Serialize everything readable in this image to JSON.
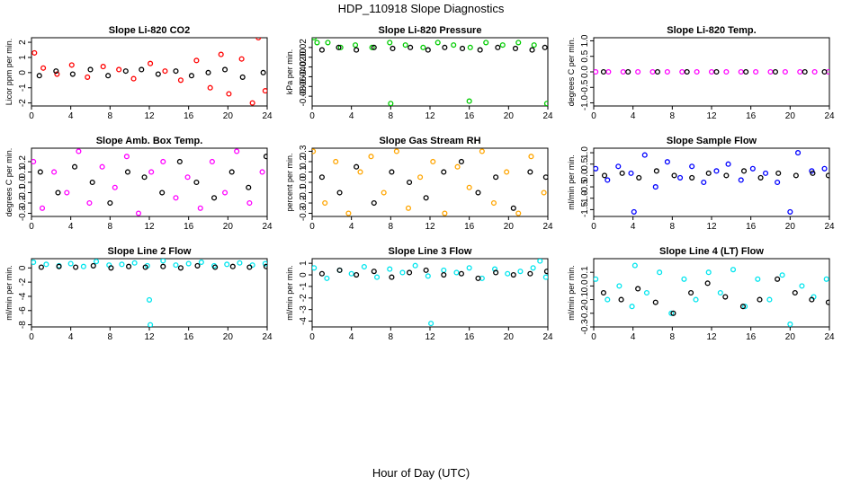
{
  "title": "HDP_110918  Slope Diagnostics",
  "xlabel": "Hour of Day (UTC)",
  "colors": {
    "axis": "#000000",
    "bg": "#ffffff",
    "accent_points": "#000000"
  },
  "chart_data": [
    {
      "type": "scatter",
      "title": "Slope Li-820 CO2",
      "ylabel": "Licor ppm per min.",
      "color": "#ff0000",
      "xlim": [
        0,
        24
      ],
      "ylim": [
        -2.2,
        2.3
      ],
      "xticks": [
        0,
        4,
        8,
        12,
        16,
        20,
        24
      ],
      "xtick_labels": [
        "0",
        "4",
        "8",
        "12",
        "16",
        "20",
        "24"
      ],
      "yticks": [
        -2,
        -1,
        0,
        1,
        2
      ],
      "ytick_labels": [
        "-2",
        "-1",
        "0",
        "1",
        "2"
      ],
      "series": [
        {
          "name": "main",
          "color": "#ff0000",
          "x": [
            0.3,
            1.2,
            2.6,
            4.1,
            5.7,
            7.3,
            8.9,
            10.4,
            12.1,
            13.6,
            15.2,
            16.8,
            18.2,
            19.3,
            20.1,
            21.4,
            22.5,
            23.1,
            23.8
          ],
          "y": [
            1.3,
            0.3,
            -0.1,
            0.5,
            -0.3,
            0.4,
            0.2,
            -0.4,
            0.6,
            0.1,
            -0.5,
            0.8,
            -1.0,
            1.2,
            -1.4,
            0.9,
            -2.0,
            2.3,
            -1.2
          ]
        },
        {
          "name": "secondary",
          "color": "#000000",
          "x": [
            0.8,
            2.5,
            4.2,
            6.0,
            7.8,
            9.6,
            11.2,
            12.9,
            14.7,
            16.3,
            18.0,
            19.7,
            21.5,
            23.6
          ],
          "y": [
            -0.2,
            0.1,
            -0.1,
            0.2,
            -0.2,
            0.1,
            0.2,
            -0.1,
            0.1,
            -0.2,
            0.0,
            0.2,
            -0.3,
            0.0
          ]
        }
      ]
    },
    {
      "type": "scatter",
      "title": "Slope Li-820 Pressure",
      "ylabel": "kPa per min.",
      "color": "#00cc00",
      "xlim": [
        0,
        24
      ],
      "ylim": [
        -0.1,
        0.04
      ],
      "xticks": [
        0,
        4,
        8,
        12,
        16,
        20,
        24
      ],
      "xtick_labels": [
        "0",
        "4",
        "8",
        "12",
        "16",
        "20",
        "24"
      ],
      "yticks": [
        -0.08,
        -0.06,
        -0.04,
        -0.02,
        0.0,
        0.02
      ],
      "ytick_labels": [
        "-0.08",
        "-0.06",
        "-0.04",
        "-0.02",
        "0.00",
        "0.02"
      ],
      "series": [
        {
          "name": "main",
          "color": "#00cc00",
          "x": [
            0.2,
            0.5,
            1.6,
            2.9,
            4.4,
            6.1,
            7.9,
            8.0,
            9.5,
            11.3,
            12.8,
            14.4,
            16.0,
            16.1,
            17.7,
            19.4,
            21.0,
            22.6,
            23.9
          ],
          "y": [
            0.04,
            0.03,
            0.03,
            0.02,
            0.025,
            0.02,
            0.03,
            -0.095,
            0.025,
            0.02,
            0.03,
            0.025,
            -0.09,
            0.02,
            0.03,
            0.025,
            0.03,
            0.025,
            -0.095
          ]
        },
        {
          "name": "secondary",
          "color": "#000000",
          "x": [
            1.0,
            2.7,
            4.5,
            6.3,
            8.2,
            10.0,
            11.8,
            13.5,
            15.3,
            17.1,
            18.9,
            20.7,
            22.4,
            23.7
          ],
          "y": [
            0.015,
            0.02,
            0.015,
            0.02,
            0.018,
            0.02,
            0.015,
            0.02,
            0.018,
            0.015,
            0.02,
            0.018,
            0.015,
            0.02
          ]
        }
      ]
    },
    {
      "type": "scatter",
      "title": "Slope Li-820 Temp.",
      "ylabel": "degrees C per min.",
      "color": "#ff00ff",
      "xlim": [
        0,
        24
      ],
      "ylim": [
        -1.1,
        1.1
      ],
      "xticks": [
        0,
        4,
        8,
        12,
        16,
        20,
        24
      ],
      "xtick_labels": [
        "0",
        "4",
        "8",
        "12",
        "16",
        "20",
        "24"
      ],
      "yticks": [
        -1.0,
        -0.5,
        0.0,
        0.5,
        1.0
      ],
      "ytick_labels": [
        "-1.0",
        "-0.5",
        "0.0",
        "0.5",
        "1.0"
      ],
      "series": [
        {
          "name": "main",
          "color": "#ff00ff",
          "x": [
            0.2,
            1.5,
            3.0,
            4.5,
            6.0,
            7.5,
            9.0,
            10.5,
            12.0,
            13.5,
            15.0,
            16.5,
            18.0,
            19.5,
            21.0,
            22.5,
            23.9
          ],
          "y": [
            0,
            0,
            0,
            0,
            0,
            0,
            0,
            0,
            0,
            0,
            0,
            0,
            0,
            0,
            0,
            0,
            0
          ]
        },
        {
          "name": "secondary",
          "color": "#000000",
          "x": [
            1.0,
            3.5,
            6.5,
            9.5,
            12.5,
            15.5,
            18.5,
            21.5,
            23.5
          ],
          "y": [
            0,
            0,
            0,
            0,
            0,
            0,
            0,
            0,
            0
          ]
        }
      ]
    },
    {
      "type": "scatter",
      "title": "Slope Amb. Box Temp.",
      "ylabel": "degrees C per min.",
      "color": "#ff00ff",
      "xlim": [
        0,
        24
      ],
      "ylim": [
        -0.33,
        0.33
      ],
      "xticks": [
        0,
        4,
        8,
        12,
        16,
        20,
        24
      ],
      "xtick_labels": [
        "0",
        "4",
        "8",
        "12",
        "16",
        "20",
        "24"
      ],
      "yticks": [
        -0.3,
        -0.2,
        -0.1,
        0.0,
        0.1,
        0.2
      ],
      "ytick_labels": [
        "-0.3",
        "-0.2",
        "-0.1",
        "0.0",
        "0.1",
        "0.2"
      ],
      "series": [
        {
          "name": "main",
          "color": "#ff00ff",
          "x": [
            0.2,
            1.1,
            2.3,
            3.6,
            4.8,
            5.9,
            7.2,
            8.5,
            9.7,
            10.9,
            12.2,
            13.4,
            14.7,
            15.9,
            17.2,
            18.4,
            19.7,
            20.9,
            22.2,
            23.5
          ],
          "y": [
            0.2,
            -0.25,
            0.1,
            -0.1,
            0.3,
            -0.2,
            0.15,
            -0.05,
            0.25,
            -0.3,
            0.1,
            0.2,
            -0.15,
            0.05,
            -0.25,
            0.2,
            -0.1,
            0.3,
            -0.2,
            0.1
          ]
        },
        {
          "name": "secondary",
          "color": "#000000",
          "x": [
            0.9,
            2.7,
            4.4,
            6.2,
            8.0,
            9.8,
            11.5,
            13.3,
            15.1,
            16.8,
            18.6,
            20.4,
            22.1,
            23.9
          ],
          "y": [
            0.1,
            -0.1,
            0.15,
            0.0,
            -0.2,
            0.1,
            0.05,
            -0.1,
            0.2,
            0.0,
            -0.15,
            0.1,
            -0.05,
            0.25
          ]
        }
      ]
    },
    {
      "type": "scatter",
      "title": "Slope Gas Stream RH",
      "ylabel": "percent per min.",
      "color": "#ffa500",
      "xlim": [
        0,
        24
      ],
      "ylim": [
        -0.33,
        0.33
      ],
      "xticks": [
        0,
        4,
        8,
        12,
        16,
        20,
        24
      ],
      "xtick_labels": [
        "0",
        "4",
        "8",
        "12",
        "16",
        "20",
        "24"
      ],
      "yticks": [
        -0.3,
        -0.2,
        -0.1,
        0.0,
        0.1,
        0.2,
        0.3
      ],
      "ytick_labels": [
        "-0.3",
        "-0.2",
        "-0.1",
        "0.0",
        "0.1",
        "0.2",
        "0.3"
      ],
      "series": [
        {
          "name": "main",
          "color": "#ffa500",
          "x": [
            0.1,
            1.3,
            2.4,
            3.7,
            4.9,
            6.0,
            7.3,
            8.6,
            9.8,
            11.0,
            12.3,
            13.5,
            14.8,
            16.0,
            17.3,
            18.5,
            19.8,
            21.0,
            22.3,
            23.6
          ],
          "y": [
            0.3,
            -0.2,
            0.2,
            -0.3,
            0.1,
            0.25,
            -0.1,
            0.3,
            -0.25,
            0.05,
            0.2,
            -0.3,
            0.15,
            -0.05,
            0.3,
            -0.2,
            0.1,
            -0.3,
            0.25,
            -0.1
          ]
        },
        {
          "name": "secondary",
          "color": "#000000",
          "x": [
            1.0,
            2.8,
            4.5,
            6.3,
            8.1,
            9.9,
            11.6,
            13.4,
            15.2,
            16.9,
            18.7,
            20.5,
            22.2,
            23.8
          ],
          "y": [
            0.05,
            -0.1,
            0.15,
            -0.2,
            0.1,
            0.0,
            -0.15,
            0.1,
            0.2,
            -0.1,
            0.05,
            -0.25,
            0.1,
            0.05
          ]
        }
      ]
    },
    {
      "type": "scatter",
      "title": "Slope Sample Flow",
      "ylabel": "ml/min per min.",
      "color": "#0000ff",
      "xlim": [
        0,
        24
      ],
      "ylim": [
        -1.8,
        1.2
      ],
      "xticks": [
        0,
        4,
        8,
        12,
        16,
        20,
        24
      ],
      "xtick_labels": [
        "0",
        "4",
        "8",
        "12",
        "16",
        "20",
        "24"
      ],
      "yticks": [
        -1.5,
        -1.0,
        -0.5,
        0.0,
        0.5,
        1.0
      ],
      "ytick_labels": [
        "-1.5",
        "-1.0",
        "-0.5",
        "0.0",
        "0.5",
        "1.0"
      ],
      "series": [
        {
          "name": "main",
          "color": "#0000ff",
          "x": [
            0.2,
            1.4,
            2.5,
            3.8,
            4.1,
            5.2,
            6.3,
            7.5,
            8.8,
            10.0,
            11.2,
            12.5,
            13.7,
            15.0,
            16.2,
            17.5,
            18.7,
            20.0,
            20.8,
            22.2,
            23.5
          ],
          "y": [
            0.3,
            -0.2,
            0.4,
            0.1,
            -1.6,
            0.9,
            -0.5,
            0.6,
            -0.1,
            0.4,
            -0.3,
            0.2,
            0.5,
            -0.2,
            0.3,
            0.1,
            -0.3,
            -1.6,
            1.0,
            0.2,
            0.3
          ]
        },
        {
          "name": "secondary",
          "color": "#000000",
          "x": [
            1.1,
            2.9,
            4.6,
            6.4,
            8.2,
            10.0,
            11.7,
            13.5,
            15.3,
            17.0,
            18.8,
            20.6,
            22.3,
            23.9
          ],
          "y": [
            0.0,
            0.1,
            -0.1,
            0.2,
            0.0,
            -0.1,
            0.1,
            0.0,
            0.2,
            -0.1,
            0.1,
            0.0,
            0.1,
            0.0
          ]
        }
      ]
    },
    {
      "type": "scatter",
      "title": "Slope Line 2 Flow",
      "ylabel": "ml/min per min.",
      "color": "#00e5ee",
      "xlim": [
        0,
        24
      ],
      "ylim": [
        -8.3,
        1.3
      ],
      "xticks": [
        0,
        4,
        8,
        12,
        16,
        20,
        24
      ],
      "xtick_labels": [
        "0",
        "4",
        "8",
        "12",
        "16",
        "20",
        "24"
      ],
      "yticks": [
        -8,
        -6,
        -4,
        -2,
        0
      ],
      "ytick_labels": [
        "-8",
        "-6",
        "-4",
        "-2",
        "0"
      ],
      "series": [
        {
          "name": "main",
          "color": "#00e5ee",
          "x": [
            0.2,
            1.5,
            2.8,
            4.0,
            5.3,
            6.6,
            7.9,
            9.2,
            10.5,
            11.8,
            12.0,
            12.1,
            13.4,
            14.7,
            16.0,
            17.3,
            18.6,
            19.9,
            21.2,
            22.5,
            23.8
          ],
          "y": [
            0.8,
            0.5,
            0.3,
            0.6,
            0.2,
            0.9,
            0.4,
            0.5,
            0.7,
            0.3,
            -4.5,
            -8.0,
            1.0,
            0.4,
            0.6,
            0.8,
            0.3,
            0.5,
            0.7,
            0.4,
            0.6
          ]
        },
        {
          "name": "secondary",
          "color": "#000000",
          "x": [
            1.0,
            2.8,
            4.5,
            6.3,
            8.1,
            9.9,
            11.6,
            13.4,
            15.2,
            16.9,
            18.7,
            20.5,
            22.2,
            23.9
          ],
          "y": [
            0.1,
            0.2,
            0.1,
            0.3,
            0.0,
            0.2,
            0.1,
            0.2,
            0.0,
            0.3,
            0.1,
            0.2,
            0.1,
            0.2
          ]
        }
      ]
    },
    {
      "type": "scatter",
      "title": "Slope Line 3 Flow",
      "ylabel": "ml/min per min.",
      "color": "#00e5ee",
      "xlim": [
        0,
        24
      ],
      "ylim": [
        -4.5,
        1.4
      ],
      "xticks": [
        0,
        4,
        8,
        12,
        16,
        20,
        24
      ],
      "xtick_labels": [
        "0",
        "4",
        "8",
        "12",
        "16",
        "20",
        "24"
      ],
      "yticks": [
        -4,
        -3,
        -2,
        -1,
        0,
        1
      ],
      "ytick_labels": [
        "-4",
        "-3",
        "-2",
        "-1",
        "0",
        "1"
      ],
      "series": [
        {
          "name": "main",
          "color": "#00e5ee",
          "x": [
            0.2,
            1.5,
            2.8,
            4.0,
            5.3,
            6.6,
            7.9,
            9.2,
            10.5,
            11.8,
            12.1,
            13.4,
            14.7,
            16.0,
            17.3,
            18.6,
            19.9,
            21.2,
            22.5,
            23.2,
            23.8
          ],
          "y": [
            0.6,
            -0.3,
            0.4,
            0.1,
            0.7,
            -0.2,
            0.5,
            0.2,
            0.8,
            -0.1,
            -4.2,
            0.4,
            0.2,
            0.6,
            -0.3,
            0.5,
            0.1,
            0.3,
            0.6,
            1.2,
            -0.2
          ]
        },
        {
          "name": "secondary",
          "color": "#000000",
          "x": [
            1.0,
            2.8,
            4.5,
            6.3,
            8.1,
            9.9,
            11.6,
            13.4,
            15.2,
            16.9,
            18.7,
            20.5,
            22.2,
            23.9
          ],
          "y": [
            0.1,
            0.4,
            0.0,
            0.3,
            -0.2,
            0.2,
            0.4,
            0.0,
            0.1,
            -0.3,
            0.2,
            0.0,
            0.1,
            0.3
          ]
        }
      ]
    },
    {
      "type": "scatter",
      "title": "Slope Line 4 (LT) Flow",
      "ylabel": "ml/min per min.",
      "color": "#00e5ee",
      "xlim": [
        0,
        24
      ],
      "ylim": [
        -0.3,
        0.2
      ],
      "xticks": [
        0,
        4,
        8,
        12,
        16,
        20,
        24
      ],
      "xtick_labels": [
        "0",
        "4",
        "8",
        "12",
        "16",
        "20",
        "24"
      ],
      "yticks": [
        -0.3,
        -0.2,
        -0.1,
        0.0,
        0.1
      ],
      "ytick_labels": [
        "-0.3",
        "-0.2",
        "-0.1",
        "0.0",
        "0.1"
      ],
      "series": [
        {
          "name": "main",
          "color": "#00e5ee",
          "x": [
            0.2,
            1.4,
            2.6,
            3.9,
            4.2,
            5.4,
            6.7,
            7.9,
            9.2,
            10.4,
            11.7,
            12.9,
            14.2,
            15.4,
            16.7,
            17.9,
            19.2,
            20.0,
            21.2,
            22.4,
            23.7
          ],
          "y": [
            0.05,
            -0.1,
            0.0,
            -0.15,
            0.15,
            -0.05,
            0.1,
            -0.2,
            0.05,
            -0.1,
            0.1,
            -0.05,
            0.12,
            -0.15,
            0.05,
            -0.1,
            0.08,
            -0.28,
            0.0,
            -0.08,
            0.05
          ]
        },
        {
          "name": "secondary",
          "color": "#000000",
          "x": [
            1.0,
            2.8,
            4.5,
            6.3,
            8.1,
            9.9,
            11.6,
            13.4,
            15.2,
            16.9,
            18.7,
            20.5,
            22.2,
            23.9
          ],
          "y": [
            -0.05,
            -0.1,
            -0.02,
            -0.12,
            -0.2,
            -0.05,
            0.02,
            -0.08,
            -0.15,
            -0.1,
            0.05,
            -0.05,
            -0.1,
            -0.12
          ]
        }
      ]
    }
  ]
}
